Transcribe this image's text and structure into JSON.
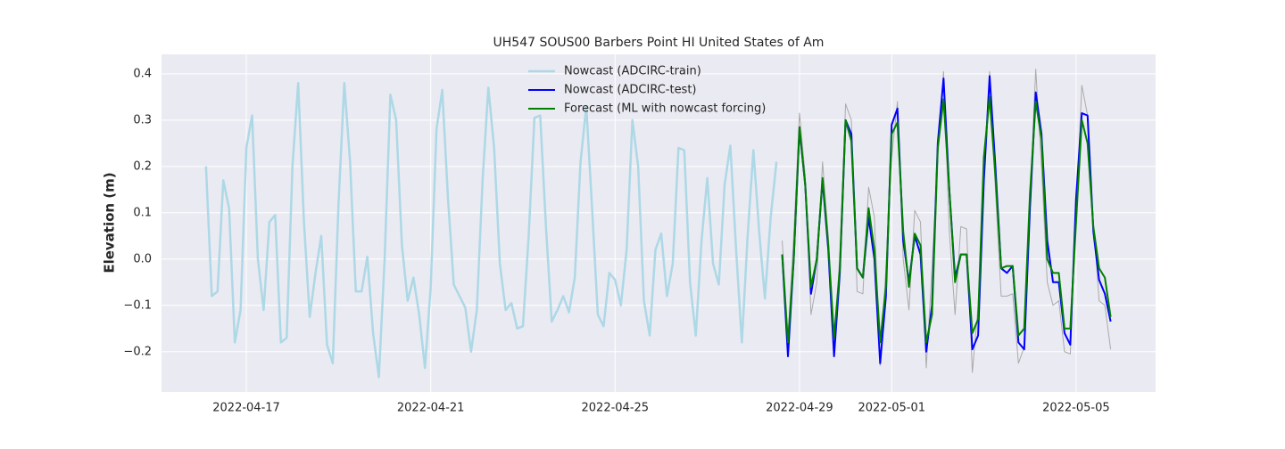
{
  "chart_data": {
    "type": "line",
    "title": "UH547 SOUS00 Barbers Point HI United States of Am",
    "y_label": "Elevation (m)",
    "x": [
      "2022-04-16 03:00",
      "2022-04-16 06:00",
      "2022-04-16 09:00",
      "2022-04-16 12:00",
      "2022-04-16 15:00",
      "2022-04-16 18:00",
      "2022-04-16 21:00",
      "2022-04-17 00:00",
      "2022-04-17 03:00",
      "2022-04-17 06:00",
      "2022-04-17 09:00",
      "2022-04-17 12:00",
      "2022-04-17 15:00",
      "2022-04-17 18:00",
      "2022-04-17 21:00",
      "2022-04-18 00:00",
      "2022-04-18 03:00",
      "2022-04-18 06:00",
      "2022-04-18 09:00",
      "2022-04-18 12:00",
      "2022-04-18 15:00",
      "2022-04-18 18:00",
      "2022-04-18 21:00",
      "2022-04-19 00:00",
      "2022-04-19 03:00",
      "2022-04-19 06:00",
      "2022-04-19 09:00",
      "2022-04-19 12:00",
      "2022-04-19 15:00",
      "2022-04-19 18:00",
      "2022-04-19 21:00",
      "2022-04-20 00:00",
      "2022-04-20 03:00",
      "2022-04-20 06:00",
      "2022-04-20 09:00",
      "2022-04-20 12:00",
      "2022-04-20 15:00",
      "2022-04-20 18:00",
      "2022-04-20 21:00",
      "2022-04-21 00:00",
      "2022-04-21 03:00",
      "2022-04-21 06:00",
      "2022-04-21 09:00",
      "2022-04-21 12:00",
      "2022-04-21 15:00",
      "2022-04-21 18:00",
      "2022-04-21 21:00",
      "2022-04-22 00:00",
      "2022-04-22 03:00",
      "2022-04-22 06:00",
      "2022-04-22 09:00",
      "2022-04-22 12:00",
      "2022-04-22 15:00",
      "2022-04-22 18:00",
      "2022-04-22 21:00",
      "2022-04-23 00:00",
      "2022-04-23 03:00",
      "2022-04-23 06:00",
      "2022-04-23 09:00",
      "2022-04-23 12:00",
      "2022-04-23 15:00",
      "2022-04-23 18:00",
      "2022-04-23 21:00",
      "2022-04-24 00:00",
      "2022-04-24 03:00",
      "2022-04-24 06:00",
      "2022-04-24 09:00",
      "2022-04-24 12:00",
      "2022-04-24 15:00",
      "2022-04-24 18:00",
      "2022-04-24 21:00",
      "2022-04-25 00:00",
      "2022-04-25 03:00",
      "2022-04-25 06:00",
      "2022-04-25 09:00",
      "2022-04-25 12:00",
      "2022-04-25 15:00",
      "2022-04-25 18:00",
      "2022-04-25 21:00",
      "2022-04-26 00:00",
      "2022-04-26 03:00",
      "2022-04-26 06:00",
      "2022-04-26 09:00",
      "2022-04-26 12:00",
      "2022-04-26 15:00",
      "2022-04-26 18:00",
      "2022-04-26 21:00",
      "2022-04-27 00:00",
      "2022-04-27 03:00",
      "2022-04-27 06:00",
      "2022-04-27 09:00",
      "2022-04-27 12:00",
      "2022-04-27 15:00",
      "2022-04-27 18:00",
      "2022-04-27 21:00",
      "2022-04-28 00:00",
      "2022-04-28 03:00",
      "2022-04-28 06:00",
      "2022-04-28 09:00",
      "2022-04-28 12:00",
      "2022-04-28 15:00",
      "2022-04-28 18:00",
      "2022-04-28 21:00",
      "2022-04-29 00:00",
      "2022-04-29 03:00",
      "2022-04-29 06:00",
      "2022-04-29 09:00",
      "2022-04-29 12:00",
      "2022-04-29 15:00",
      "2022-04-29 18:00",
      "2022-04-29 21:00",
      "2022-04-30 00:00",
      "2022-04-30 03:00",
      "2022-04-30 06:00",
      "2022-04-30 09:00",
      "2022-04-30 12:00",
      "2022-04-30 15:00",
      "2022-04-30 18:00",
      "2022-04-30 21:00",
      "2022-05-01 00:00",
      "2022-05-01 03:00",
      "2022-05-01 06:00",
      "2022-05-01 09:00",
      "2022-05-01 12:00",
      "2022-05-01 15:00",
      "2022-05-01 18:00",
      "2022-05-01 21:00",
      "2022-05-02 00:00",
      "2022-05-02 03:00",
      "2022-05-02 06:00",
      "2022-05-02 09:00",
      "2022-05-02 12:00",
      "2022-05-02 15:00",
      "2022-05-02 18:00",
      "2022-05-02 21:00",
      "2022-05-03 00:00",
      "2022-05-03 03:00",
      "2022-05-03 06:00",
      "2022-05-03 09:00",
      "2022-05-03 12:00",
      "2022-05-03 15:00",
      "2022-05-03 18:00",
      "2022-05-03 21:00",
      "2022-05-04 00:00",
      "2022-05-04 03:00",
      "2022-05-04 06:00",
      "2022-05-04 09:00",
      "2022-05-04 12:00",
      "2022-05-04 15:00",
      "2022-05-04 18:00",
      "2022-05-04 21:00",
      "2022-05-05 00:00",
      "2022-05-05 03:00",
      "2022-05-05 06:00",
      "2022-05-05 09:00",
      "2022-05-05 12:00",
      "2022-05-05 15:00",
      "2022-05-05 18:00"
    ],
    "series": [
      {
        "color": "#aaaaaa",
        "line_width": 1,
        "values": [
          null,
          null,
          null,
          null,
          null,
          null,
          null,
          null,
          null,
          null,
          null,
          null,
          null,
          null,
          null,
          null,
          null,
          null,
          null,
          null,
          null,
          null,
          null,
          null,
          null,
          null,
          null,
          null,
          null,
          null,
          null,
          null,
          null,
          null,
          null,
          null,
          null,
          null,
          null,
          null,
          null,
          null,
          null,
          null,
          null,
          null,
          null,
          null,
          null,
          null,
          null,
          null,
          null,
          null,
          null,
          null,
          null,
          null,
          null,
          null,
          null,
          null,
          null,
          null,
          null,
          null,
          null,
          null,
          null,
          null,
          null,
          null,
          null,
          null,
          null,
          null,
          null,
          null,
          null,
          null,
          null,
          null,
          null,
          null,
          null,
          null,
          null,
          null,
          null,
          null,
          null,
          null,
          null,
          null,
          null,
          null,
          null,
          null,
          null,
          null,
          0.04,
          -0.17,
          0.05,
          0.315,
          0.18,
          -0.12,
          -0.05,
          0.21,
          0.05,
          -0.2,
          0.01,
          0.335,
          0.3,
          -0.07,
          -0.075,
          0.155,
          0.09,
          -0.23,
          -0.02,
          0.22,
          0.34,
          0.0,
          -0.11,
          0.105,
          0.08,
          -0.235,
          -0.02,
          0.22,
          0.405,
          0.06,
          -0.12,
          0.07,
          0.065,
          -0.245,
          -0.1,
          0.16,
          0.405,
          0.15,
          -0.08,
          -0.08,
          -0.075,
          -0.225,
          -0.19,
          0.13,
          0.41,
          0.2,
          -0.05,
          -0.1,
          -0.09,
          -0.2,
          -0.205,
          0.1,
          0.375,
          0.31,
          0.08,
          -0.09,
          -0.1,
          -0.195
        ]
      },
      {
        "name": "Nowcast (ADCIRC-train)",
        "color": "#add8e6",
        "line_width": 2.5,
        "values": [
          0.2,
          -0.08,
          -0.07,
          0.17,
          0.11,
          -0.18,
          -0.11,
          0.24,
          0.31,
          0.0,
          -0.11,
          0.08,
          0.095,
          -0.18,
          -0.17,
          0.2,
          0.38,
          0.08,
          -0.125,
          -0.03,
          0.05,
          -0.185,
          -0.225,
          0.12,
          0.38,
          0.21,
          -0.07,
          -0.07,
          0.005,
          -0.16,
          -0.255,
          0.0,
          0.355,
          0.3,
          0.03,
          -0.09,
          -0.04,
          -0.12,
          -0.235,
          -0.06,
          0.28,
          0.365,
          0.13,
          -0.055,
          -0.08,
          -0.105,
          -0.2,
          -0.11,
          0.17,
          0.37,
          0.24,
          -0.01,
          -0.11,
          -0.095,
          -0.15,
          -0.145,
          0.05,
          0.305,
          0.31,
          0.07,
          -0.135,
          -0.11,
          -0.08,
          -0.115,
          -0.04,
          0.21,
          0.33,
          0.11,
          -0.12,
          -0.145,
          -0.03,
          -0.045,
          -0.1,
          0.02,
          0.3,
          0.2,
          -0.09,
          -0.165,
          0.02,
          0.055,
          -0.08,
          -0.01,
          0.24,
          0.235,
          -0.05,
          -0.165,
          0.04,
          0.175,
          -0.01,
          -0.055,
          0.16,
          0.245,
          0.02,
          -0.18,
          0.05,
          0.235,
          0.06,
          -0.085,
          0.09,
          0.21,
          null,
          null,
          null,
          null,
          null,
          null,
          null,
          null,
          null,
          null,
          null,
          null,
          null,
          null,
          null,
          null,
          null,
          null,
          null,
          null,
          null,
          null,
          null,
          null,
          null,
          null,
          null,
          null,
          null,
          null,
          null,
          null,
          null,
          null,
          null,
          null,
          null,
          null,
          null,
          null,
          null,
          null,
          null,
          null,
          null,
          null,
          null,
          null,
          null,
          null,
          null,
          null,
          null,
          null,
          null,
          null,
          null,
          null
        ]
      },
      {
        "name": "Nowcast (ADCIRC-test)",
        "color": "#0000ff",
        "line_width": 2,
        "values": [
          null,
          null,
          null,
          null,
          null,
          null,
          null,
          null,
          null,
          null,
          null,
          null,
          null,
          null,
          null,
          null,
          null,
          null,
          null,
          null,
          null,
          null,
          null,
          null,
          null,
          null,
          null,
          null,
          null,
          null,
          null,
          null,
          null,
          null,
          null,
          null,
          null,
          null,
          null,
          null,
          null,
          null,
          null,
          null,
          null,
          null,
          null,
          null,
          null,
          null,
          null,
          null,
          null,
          null,
          null,
          null,
          null,
          null,
          null,
          null,
          null,
          null,
          null,
          null,
          null,
          null,
          null,
          null,
          null,
          null,
          null,
          null,
          null,
          null,
          null,
          null,
          null,
          null,
          null,
          null,
          null,
          null,
          null,
          null,
          null,
          null,
          null,
          null,
          null,
          null,
          null,
          null,
          null,
          null,
          null,
          null,
          null,
          null,
          null,
          null,
          0.01,
          -0.21,
          0.0,
          0.28,
          0.16,
          -0.075,
          0.0,
          0.17,
          0.02,
          -0.21,
          -0.03,
          0.3,
          0.27,
          -0.02,
          -0.04,
          0.09,
          0.0,
          -0.225,
          -0.08,
          0.29,
          0.325,
          0.04,
          -0.05,
          0.05,
          0.01,
          -0.2,
          -0.1,
          0.25,
          0.39,
          0.15,
          -0.04,
          0.01,
          0.01,
          -0.195,
          -0.165,
          0.17,
          0.395,
          0.2,
          -0.02,
          -0.03,
          -0.015,
          -0.18,
          -0.195,
          0.11,
          0.36,
          0.27,
          0.04,
          -0.05,
          -0.05,
          -0.16,
          -0.185,
          0.13,
          0.315,
          0.31,
          0.06,
          -0.045,
          -0.075,
          -0.135
        ]
      },
      {
        "name": "Forecast (ML with nowcast forcing)",
        "color": "#008000",
        "line_width": 2,
        "values": [
          null,
          null,
          null,
          null,
          null,
          null,
          null,
          null,
          null,
          null,
          null,
          null,
          null,
          null,
          null,
          null,
          null,
          null,
          null,
          null,
          null,
          null,
          null,
          null,
          null,
          null,
          null,
          null,
          null,
          null,
          null,
          null,
          null,
          null,
          null,
          null,
          null,
          null,
          null,
          null,
          null,
          null,
          null,
          null,
          null,
          null,
          null,
          null,
          null,
          null,
          null,
          null,
          null,
          null,
          null,
          null,
          null,
          null,
          null,
          null,
          null,
          null,
          null,
          null,
          null,
          null,
          null,
          null,
          null,
          null,
          null,
          null,
          null,
          null,
          null,
          null,
          null,
          null,
          null,
          null,
          null,
          null,
          null,
          null,
          null,
          null,
          null,
          null,
          null,
          null,
          null,
          null,
          null,
          null,
          null,
          null,
          null,
          null,
          null,
          null,
          0.01,
          -0.18,
          0.0,
          0.285,
          0.16,
          -0.06,
          0.0,
          0.175,
          0.03,
          -0.17,
          -0.02,
          0.3,
          0.255,
          -0.02,
          -0.04,
          0.11,
          0.02,
          -0.18,
          -0.06,
          0.27,
          0.295,
          0.06,
          -0.06,
          0.055,
          0.03,
          -0.18,
          -0.12,
          0.24,
          0.345,
          0.15,
          -0.05,
          0.01,
          0.01,
          -0.16,
          -0.13,
          0.22,
          0.35,
          0.18,
          -0.02,
          -0.015,
          -0.015,
          -0.165,
          -0.15,
          0.14,
          0.34,
          0.26,
          0.0,
          -0.03,
          -0.03,
          -0.15,
          -0.15,
          0.08,
          0.3,
          0.25,
          0.07,
          -0.02,
          -0.04,
          -0.125
        ]
      }
    ],
    "xlim": [
      "2022-04-15 03:50",
      "2022-05-06 17:25"
    ],
    "xticks": [
      "2022-04-17",
      "2022-04-21",
      "2022-04-25",
      "2022-04-29",
      "2022-05-01",
      "2022-05-05"
    ],
    "ylim": [
      -0.287,
      0.442
    ],
    "yticks": [
      {
        "value": -0.2,
        "label": "−0.2"
      },
      {
        "value": -0.1,
        "label": "−0.1"
      },
      {
        "value": 0,
        "label": "0.0"
      },
      0.1,
      0.2,
      0.3,
      0.4
    ],
    "grid": true,
    "legend": "upper center"
  }
}
